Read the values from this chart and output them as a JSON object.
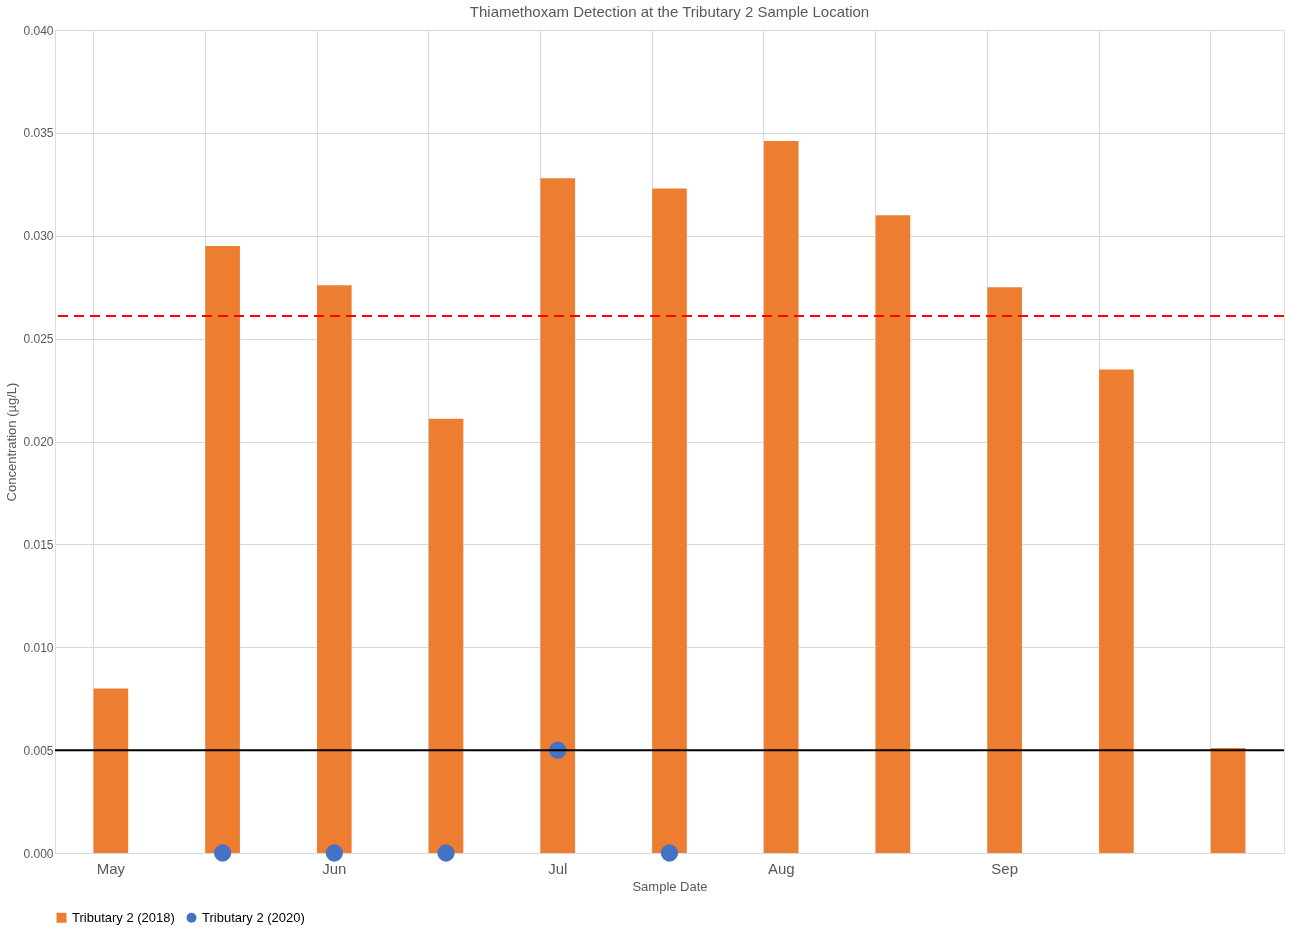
{
  "chart_data": {
    "type": "bar",
    "title": "Thiamethoxam Detection at the Tributary 2 Sample Location",
    "xlabel": "Sample Date",
    "ylabel": "Concentration (µg/L)",
    "categories": [
      "May",
      null,
      "Jun",
      null,
      "Jul",
      null,
      "Aug",
      null,
      "Sep",
      null,
      null
    ],
    "series": [
      {
        "name": "Tributary 2 (2018)",
        "type": "bar",
        "color": "#ed7d31",
        "values": [
          0.008,
          0.0295,
          0.0276,
          0.0211,
          0.0328,
          0.0323,
          0.0346,
          0.031,
          0.0275,
          0.0235,
          0.0051
        ]
      },
      {
        "name": "Tributary 2 (2020)",
        "type": "scatter",
        "color": "#4472c4",
        "values": [
          null,
          0,
          0,
          0,
          0.005,
          0,
          null,
          null,
          null,
          null,
          null
        ]
      }
    ],
    "ylim": [
      0,
      0.04
    ],
    "yticks": [
      {
        "value": 0,
        "label": "0.000"
      },
      {
        "value": 0.005,
        "label": "0.005"
      },
      {
        "value": 0.01,
        "label": "0.010"
      },
      {
        "value": 0.015,
        "label": "0.015"
      },
      {
        "value": 0.02,
        "label": "0.020"
      },
      {
        "value": 0.025,
        "label": "0.025"
      },
      {
        "value": 0.03,
        "label": "0.030"
      },
      {
        "value": 0.035,
        "label": "0.035"
      },
      {
        "value": 0.04,
        "label": "0.040"
      }
    ],
    "ref_lines": [
      {
        "axis": "y",
        "value": 0.0261,
        "color": "#ff0000",
        "line_style": "dashed"
      },
      {
        "axis": "y",
        "value": 0.005,
        "color": "#000000",
        "line_style": "solid"
      }
    ],
    "grid": true,
    "legend": "bottom",
    "marker": "circle"
  }
}
